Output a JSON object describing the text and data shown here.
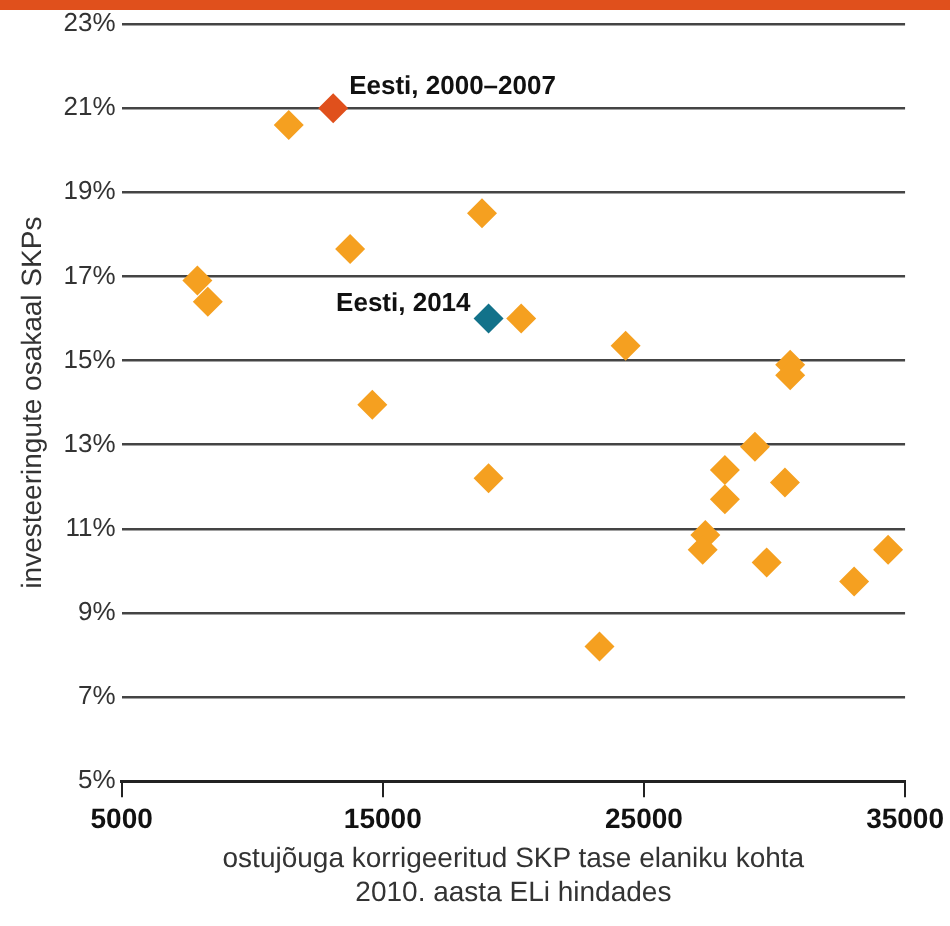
{
  "chart_data": {
    "type": "scatter",
    "xlabel": "ostujõuga korrigeeritud SKP tase elaniku kohta 2010. aasta ELi hindades",
    "ylabel": "investeeringute osakaal SKPs",
    "xlim": [
      5000,
      35000
    ],
    "xticks": [
      5000,
      15000,
      25000,
      35000
    ],
    "ylim": [
      5,
      23
    ],
    "yticks": [
      {
        "value": 5,
        "label": "5%"
      },
      {
        "value": 7,
        "label": "7%"
      },
      {
        "value": 9,
        "label": "9%"
      },
      {
        "value": 11,
        "label": "11%"
      },
      {
        "value": 13,
        "label": "13%"
      },
      {
        "value": 15,
        "label": "15%"
      },
      {
        "value": 17,
        "label": "17%"
      },
      {
        "value": 19,
        "label": "19%"
      },
      {
        "value": 21,
        "label": "21%"
      },
      {
        "value": 23,
        "label": "23%"
      }
    ],
    "grid": "y",
    "legend": false,
    "marker": "diamond",
    "series": [
      {
        "color": "#f5a020",
        "x": [
          11400,
          13750,
          18800,
          7900,
          8300,
          20300,
          24300,
          14600,
          19050,
          30600,
          30600,
          28100,
          29250,
          28100,
          30400,
          27350,
          27250,
          29700,
          33050,
          34350,
          23300
        ],
        "values": [
          20.6,
          17.65,
          18.5,
          16.9,
          16.4,
          16.0,
          15.35,
          13.95,
          12.2,
          14.9,
          14.65,
          12.4,
          12.95,
          11.7,
          12.1,
          10.85,
          10.5,
          10.2,
          9.75,
          10.5,
          8.2
        ]
      },
      {
        "name": "Eesti, 2000–2007",
        "color": "#e0501c",
        "x": [
          13100
        ],
        "values": [
          21.0
        ]
      },
      {
        "name": "Eesti, 2014",
        "color": "#12728a",
        "x": [
          19050
        ],
        "values": [
          16.0
        ]
      }
    ]
  }
}
